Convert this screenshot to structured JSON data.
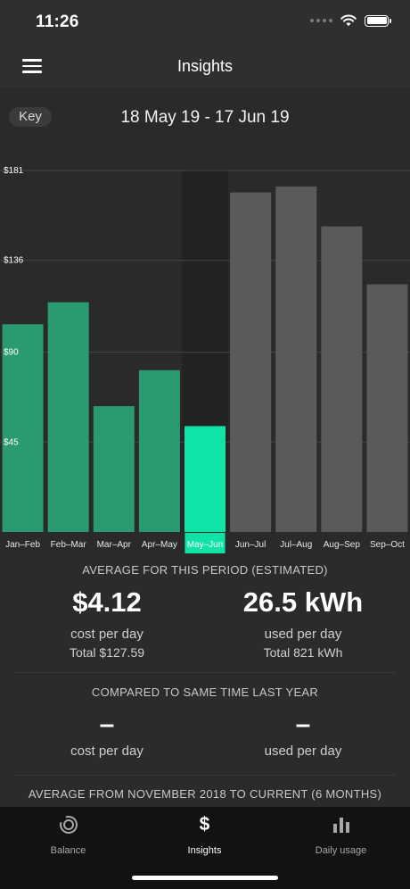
{
  "status_bar": {
    "time": "11:26"
  },
  "header": {
    "title": "Insights"
  },
  "period_selector": {
    "key_label": "Key",
    "date_range": "18 May 19 - 17 Jun 19"
  },
  "chart_data": {
    "type": "bar",
    "categories": [
      "Jan–Feb",
      "Feb–Mar",
      "Mar–Apr",
      "Apr–May",
      "May–Jun",
      "Jun–Jul",
      "Jul–Aug",
      "Aug–Sep",
      "Sep–Oct"
    ],
    "series": [
      {
        "values": [
          104,
          115,
          63,
          81,
          53,
          170,
          173,
          153,
          124
        ]
      }
    ],
    "current_period_spent": 53,
    "current_period_estimated_total": 127.59,
    "selected_category": "May–Jun",
    "y_ticks": [
      "$45",
      "$90",
      "$136",
      "$181"
    ],
    "y_tick_values": [
      45,
      90,
      136,
      181
    ],
    "ylim": [
      0,
      181
    ],
    "grid": true,
    "colors": {
      "past": "#2a9a70",
      "current": "#0fe3a8",
      "future": "#5a5a5a",
      "selected_highlight": "#222222",
      "axis_label_bg": "#0fe3a8"
    }
  },
  "average": {
    "title": "AVERAGE FOR THIS PERIOD (ESTIMATED)",
    "cost_value": "$4.12",
    "cost_label": "cost per day",
    "cost_total": "Total $127.59",
    "usage_value": "26.5 kWh",
    "usage_label": "used per day",
    "usage_total": "Total 821 kWh"
  },
  "compare": {
    "title": "COMPARED TO SAME TIME LAST YEAR",
    "cost_value": "–",
    "cost_label": "cost per day",
    "usage_value": "–",
    "usage_label": "used per day"
  },
  "long_average": {
    "title": "AVERAGE FROM NOVEMBER 2018 TO CURRENT (6 MONTHS)"
  },
  "tabs": [
    {
      "label": "Balance",
      "icon": "balance-ring-icon",
      "active": false
    },
    {
      "label": "Insights",
      "icon": "dollar-icon",
      "active": true
    },
    {
      "label": "Daily usage",
      "icon": "bar-chart-icon",
      "active": false
    }
  ]
}
